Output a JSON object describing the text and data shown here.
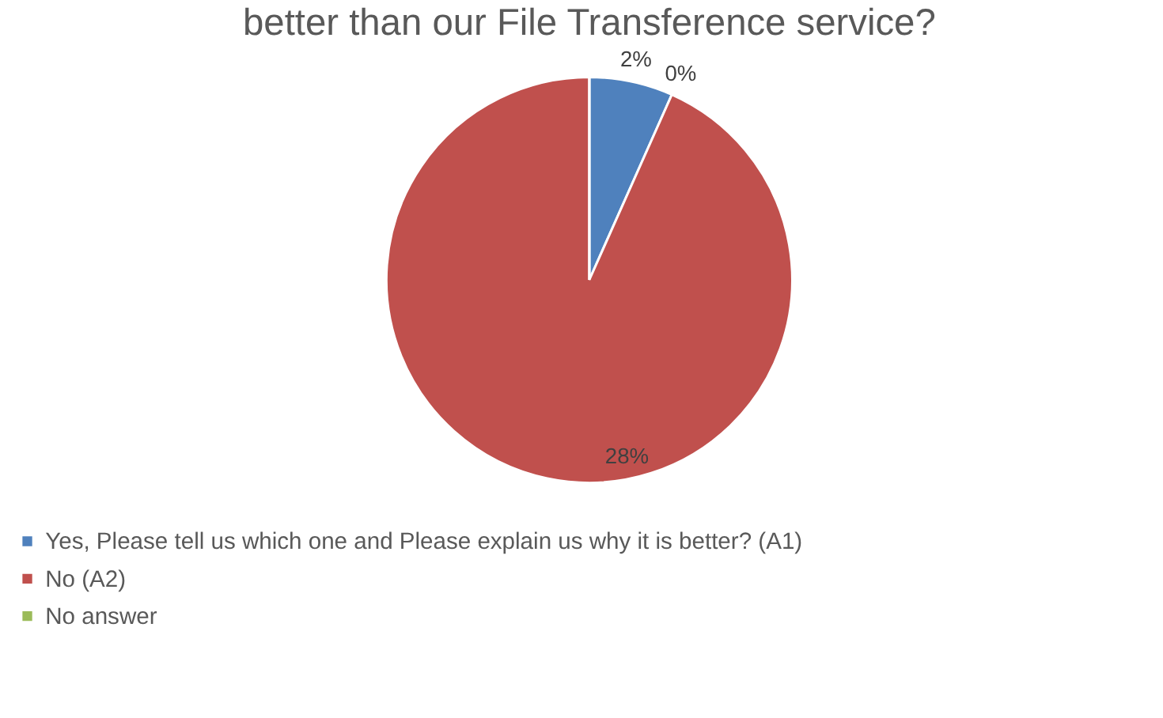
{
  "chart_data": {
    "type": "pie",
    "title": "better than our File Transference service?",
    "categories": [
      "Yes, Please tell us which one and Please explain us why it is better? (A1)",
      "No (A2)",
      "No answer"
    ],
    "values": [
      2,
      28,
      0
    ],
    "colors": [
      "#4f81bd",
      "#c0504d",
      "#9bbb59"
    ],
    "value_labels": [
      "2%",
      "28%",
      "0%"
    ],
    "legend": "bottom left"
  }
}
